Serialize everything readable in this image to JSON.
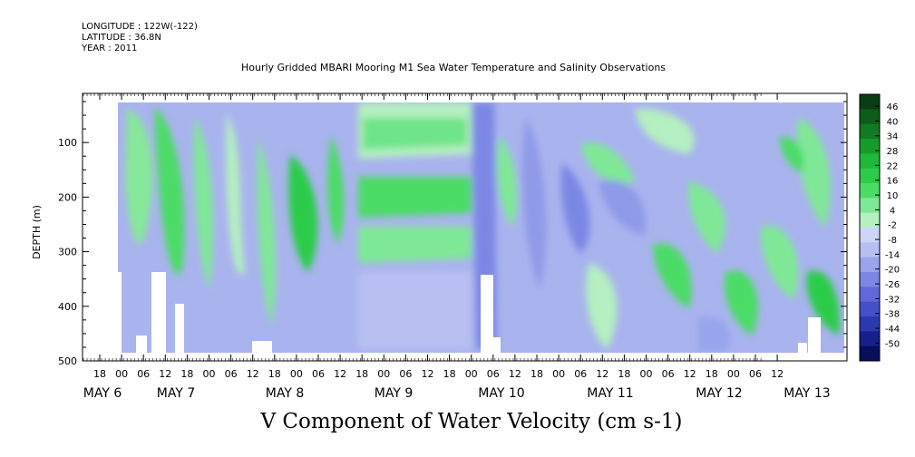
{
  "meta": {
    "longitude": "LONGITUDE : 122W(-122)",
    "latitude": "LATITUDE : 36.8N",
    "year": "YEAR : 2011"
  },
  "chart_title": "Hourly Gridded MBARI Mooring M1 Sea Water Temperature and Salinity Observations",
  "variable_title": "V Component of Water Velocity (cm s-1)",
  "chart_data": {
    "type": "heatmap",
    "title": "Hourly Gridded MBARI Mooring M1 Sea Water Temperature and Salinity Observations",
    "xlabel": "",
    "ylabel": "DEPTH (m)",
    "ylim": [
      500,
      10
    ],
    "y_ticks": [
      100,
      200,
      300,
      400,
      500
    ],
    "x_tick_labels": [
      "18",
      "00",
      "06",
      "12",
      "18",
      "00",
      "06",
      "12",
      "18",
      "00",
      "06",
      "12",
      "18",
      "00",
      "06",
      "12",
      "18",
      "00",
      "06",
      "12",
      "18",
      "00",
      "06",
      "12",
      "18",
      "00",
      "06",
      "12",
      "18",
      "00",
      "06",
      "12"
    ],
    "day_labels": [
      "MAY 6",
      "MAY 7",
      "MAY 8",
      "MAY 9",
      "MAY 10",
      "MAY 11",
      "MAY 12",
      "MAY 13"
    ],
    "colorbar_labels": [
      "46",
      "40",
      "34",
      "28",
      "22",
      "16",
      "10",
      "4",
      "-2",
      "-8",
      "-14",
      "-20",
      "-26",
      "-32",
      "-38",
      "-44",
      "-50"
    ],
    "colorbar_colors": [
      "#0a3d14",
      "#0d5c1a",
      "#127a22",
      "#179a2c",
      "#1fb83a",
      "#2ccc4a",
      "#4cdc66",
      "#7fe896",
      "#b4f0c0",
      "#cdd6f6",
      "#b4bff2",
      "#98a4ec",
      "#7c87e4",
      "#5f6ad8",
      "#4350c8",
      "#2b38b0",
      "#15208c",
      "#070e5c"
    ]
  }
}
